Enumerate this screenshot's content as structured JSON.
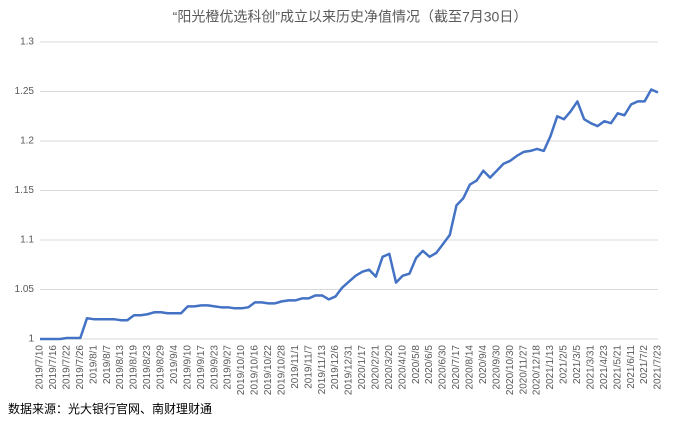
{
  "chart_data": {
    "type": "line",
    "title": "“阳光橙优选科创”成立以来历史净值情况（截至7月30日）",
    "source": "数据来源：光大银行官网、南财理财通",
    "categories": [
      "2019/7/10",
      null,
      "2019/7/16",
      null,
      "2019/7/22",
      null,
      "2019/7/26",
      null,
      "2019/8/1",
      null,
      "2019/8/7",
      null,
      "2019/8/13",
      null,
      "2019/8/19",
      null,
      "2019/8/23",
      null,
      "2019/8/29",
      null,
      "2019/9/4",
      null,
      "2019/9/10",
      null,
      "2019/9/17",
      null,
      "2019/9/23",
      null,
      "2019/9/27",
      null,
      "2019/10/10",
      null,
      "2019/10/16",
      null,
      "2019/10/22",
      null,
      "2019/10/28",
      null,
      "2019/11/1",
      null,
      "2019/11/7",
      null,
      "2019/11/13",
      null,
      "2019/12/6",
      null,
      "2019/12/31",
      null,
      "2020/1/17",
      null,
      "2020/2/21",
      null,
      "2020/3/20",
      null,
      "2020/4/10",
      null,
      "2020/5/8",
      null,
      "2020/6/5",
      null,
      "2020/6/30",
      null,
      "2020/7/17",
      null,
      "2020/8/14",
      null,
      "2020/9/4",
      null,
      "2020/9/30",
      null,
      "2020/10/30",
      null,
      "2020/11/27",
      null,
      "2020/12/18",
      null,
      "2021/1/13",
      null,
      "2021/2/5",
      null,
      "2021/3/5",
      null,
      "2021/3/31",
      null,
      "2021/4/23",
      null,
      "2021/5/21",
      null,
      "2021/6/11",
      null,
      "2021/7/2",
      null,
      "2021/7/23"
    ],
    "values": [
      1,
      1,
      1,
      1,
      1.001,
      1.001,
      1.001,
      1.021,
      1.02,
      1.02,
      1.02,
      1.02,
      1.019,
      1.019,
      1.024,
      1.024,
      1.025,
      1.027,
      1.027,
      1.026,
      1.026,
      1.026,
      1.033,
      1.033,
      1.034,
      1.034,
      1.033,
      1.032,
      1.032,
      1.031,
      1.031,
      1.032,
      1.037,
      1.037,
      1.036,
      1.036,
      1.038,
      1.039,
      1.039,
      1.041,
      1.041,
      1.044,
      1.044,
      1.04,
      1.043,
      1.052,
      1.058,
      1.064,
      1.068,
      1.07,
      1.063,
      1.083,
      1.086,
      1.057,
      1.064,
      1.066,
      1.082,
      1.089,
      1.083,
      1.087,
      1.096,
      1.105,
      1.135,
      1.142,
      1.156,
      1.16,
      1.17,
      1.163,
      1.17,
      1.177,
      1.18,
      1.185,
      1.189,
      1.19,
      1.192,
      1.19,
      1.205,
      1.225,
      1.222,
      1.23,
      1.24,
      1.222,
      1.218,
      1.215,
      1.22,
      1.218,
      1.228,
      1.226,
      1.237,
      1.24,
      1.24,
      1.252,
      1.249
    ],
    "color": "#4472c4",
    "ylim": [
      1,
      1.3
    ],
    "yticks": [
      1,
      1.05,
      1.1,
      1.15,
      1.2,
      1.25,
      1.3
    ],
    "grid": true
  }
}
